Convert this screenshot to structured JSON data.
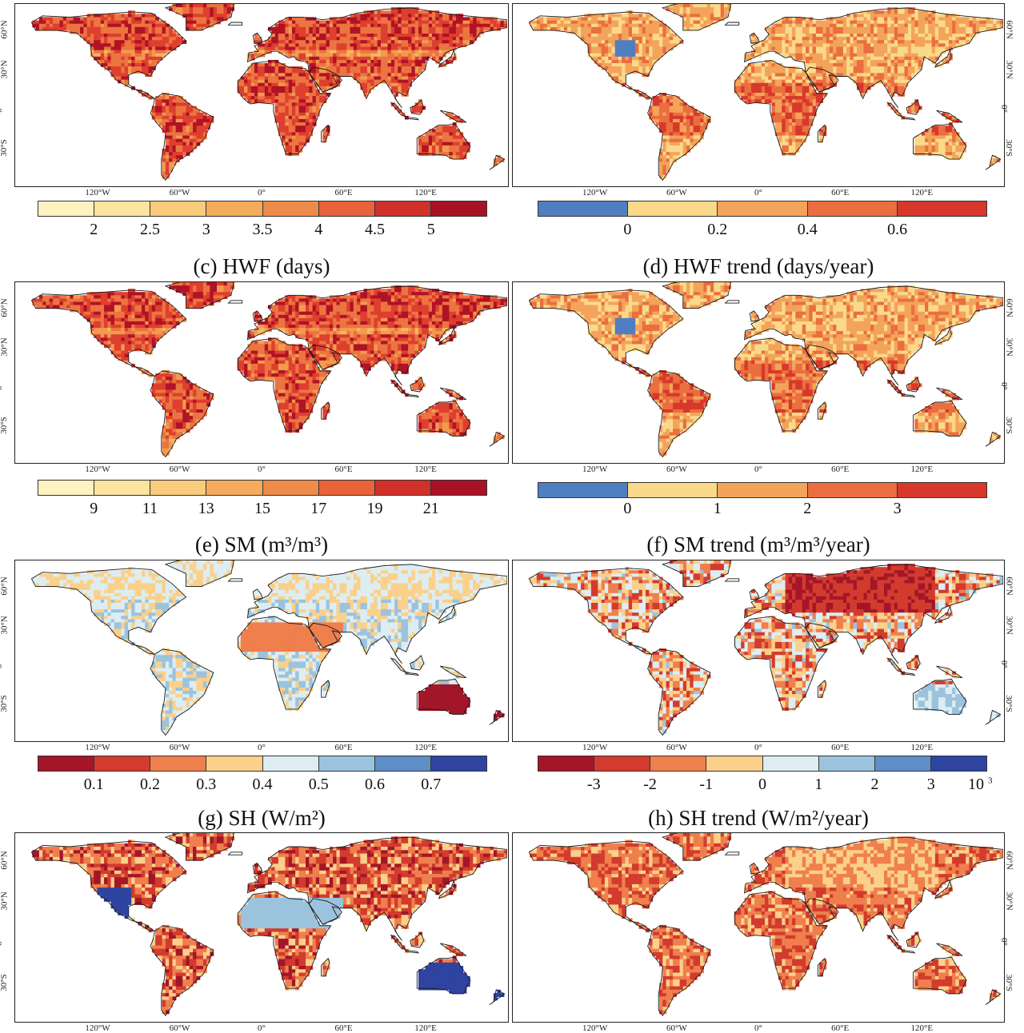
{
  "colors": {
    "warm": [
      "#fdf2c0",
      "#fbd98a",
      "#f7b663",
      "#f29a4f",
      "#ec7440",
      "#de3f2e",
      "#b01226"
    ],
    "trend4": [
      "#4f7fc2",
      "#fbd98a",
      "#f3a45a",
      "#ea6e3f",
      "#d8382c"
    ],
    "sm": [
      "#a3162a",
      "#d23b2d",
      "#ef7f4d",
      "#fbd08a",
      "#ddedf2",
      "#9cc3dd",
      "#5e8fc7",
      "#2e44a0"
    ],
    "diverging": [
      "#a3162a",
      "#d23b2d",
      "#ef7f4d",
      "#fbd08a",
      "#ddedf2",
      "#9cc3dd",
      "#5e8fc7",
      "#2e44a0"
    ]
  },
  "lon_labels": [
    "120°W",
    "60°W",
    "0°",
    "60°E",
    "120°E"
  ],
  "lat_labels": [
    "60°N",
    "30°N",
    "0°",
    "30°S"
  ],
  "panels": [
    {
      "id": "a",
      "title": "",
      "palette": "warm",
      "ticks": [
        "2",
        "2.5",
        "3",
        "3.5",
        "4",
        "4.5",
        "5"
      ],
      "exponent": ""
    },
    {
      "id": "b",
      "title": "",
      "palette": "trend4",
      "ticks": [
        "0",
        "0.2",
        "0.4",
        "0.6"
      ],
      "exponent": ""
    },
    {
      "id": "c",
      "title": "(c) HWF (days)",
      "palette": "warm",
      "ticks": [
        "9",
        "11",
        "13",
        "15",
        "17",
        "19",
        "21"
      ],
      "exponent": ""
    },
    {
      "id": "d",
      "title": "(d) HWF trend (days/year)",
      "palette": "trend4",
      "ticks": [
        "0",
        "1",
        "2",
        "3"
      ],
      "exponent": ""
    },
    {
      "id": "e",
      "title": "(e) SM (m³/m³)",
      "palette": "sm",
      "ticks": [
        "0.1",
        "0.2",
        "0.3",
        "0.4",
        "0.5",
        "0.6",
        "0.7"
      ],
      "exponent": ""
    },
    {
      "id": "f",
      "title": "(f) SM trend (m³/m³/year)",
      "palette": "diverging",
      "ticks": [
        "-3",
        "-2",
        "-1",
        "0",
        "1",
        "2",
        "3"
      ],
      "exponent": "10",
      "exponent_power": "3"
    },
    {
      "id": "g",
      "title": "(g) SH (W/m²)",
      "palette": "none",
      "ticks": [],
      "exponent": ""
    },
    {
      "id": "h",
      "title": "(h) SH trend (W/m²/year)",
      "palette": "none",
      "ticks": [],
      "exponent": ""
    }
  ]
}
